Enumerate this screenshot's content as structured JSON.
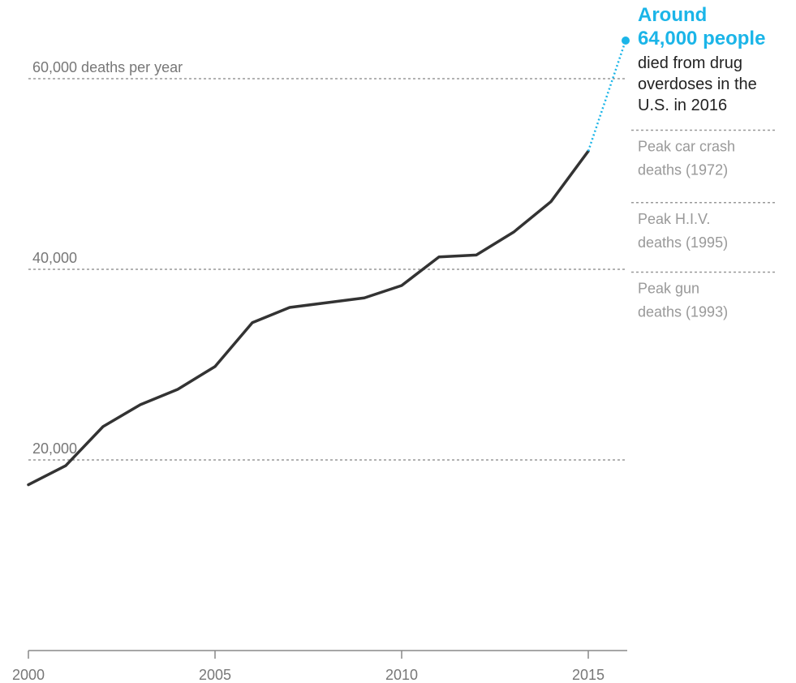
{
  "chart_data": {
    "type": "line",
    "x": [
      2000,
      2001,
      2002,
      2003,
      2004,
      2005,
      2006,
      2007,
      2008,
      2009,
      2010,
      2011,
      2012,
      2013,
      2014,
      2015,
      2016
    ],
    "values": [
      17400,
      19400,
      23500,
      25800,
      27400,
      29800,
      34400,
      36000,
      36500,
      37000,
      38300,
      41300,
      41500,
      43900,
      47100,
      52400,
      64000
    ],
    "estimated_from": 2015,
    "xlim": [
      2000,
      2016
    ],
    "ylim": [
      0,
      68000
    ],
    "x_ticks": [
      "2000",
      "2005",
      "2010",
      "2015"
    ],
    "gridlines": [
      {
        "value": 20000,
        "label": "20,000"
      },
      {
        "value": 40000,
        "label": "40,000"
      },
      {
        "value": 60000,
        "label": "60,000 deaths per year"
      }
    ],
    "reference_lines": [
      {
        "value": 54600,
        "label_lines": [
          "Peak car crash",
          "deaths (1972)"
        ]
      },
      {
        "value": 47000,
        "label_lines": [
          "Peak H.I.V.",
          "deaths (1995)"
        ]
      },
      {
        "value": 39700,
        "label_lines": [
          "Peak gun",
          "deaths (1993)"
        ]
      }
    ],
    "annotation": {
      "year": 2016,
      "value": 64000,
      "highlight_lines": [
        "Around",
        "64,000 people"
      ],
      "text_lines": [
        "died from drug",
        "overdoses in the",
        "U.S. in 2016"
      ]
    },
    "colors": {
      "line": "#333333",
      "highlight": "#1bb5e8",
      "grid": "#999999",
      "axis": "#888888"
    },
    "grid": true
  }
}
